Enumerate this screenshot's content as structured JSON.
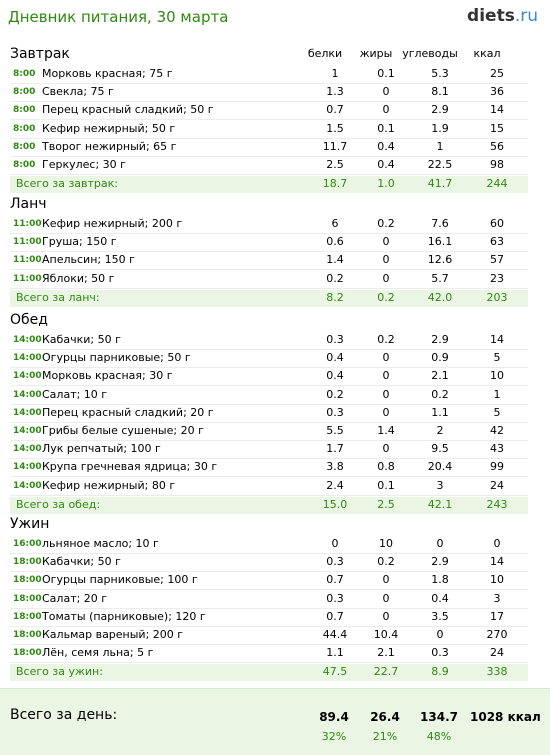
{
  "header": {
    "title": "Дневник питания, 30 марта",
    "logo_main": "diets",
    "logo_tld": ".ru"
  },
  "columns": [
    "белки",
    "жиры",
    "углеводы",
    "ккал"
  ],
  "sections": [
    {
      "title": "Завтрак",
      "rows": [
        {
          "time": "8:00",
          "name": "Морковь красная; 75 г",
          "b": "1",
          "f": "0.1",
          "c": "5.3",
          "k": "25"
        },
        {
          "time": "8:00",
          "name": "Свекла; 75 г",
          "b": "1.3",
          "f": "0",
          "c": "8.1",
          "k": "36"
        },
        {
          "time": "8:00",
          "name": "Перец красный сладкий; 50 г",
          "b": "0.7",
          "f": "0",
          "c": "2.9",
          "k": "14"
        },
        {
          "time": "8:00",
          "name": "Кефир нежирный; 50 г",
          "b": "1.5",
          "f": "0.1",
          "c": "1.9",
          "k": "15"
        },
        {
          "time": "8:00",
          "name": "Творог нежирный; 65 г",
          "b": "11.7",
          "f": "0.4",
          "c": "1",
          "k": "56"
        },
        {
          "time": "8:00",
          "name": "Геркулес; 30 г",
          "b": "2.5",
          "f": "0.4",
          "c": "22.5",
          "k": "98"
        }
      ],
      "total": {
        "label": "Всего за завтрак:",
        "b": "18.7",
        "f": "1.0",
        "c": "41.7",
        "k": "244"
      }
    },
    {
      "title": "Ланч",
      "rows": [
        {
          "time": "11:00",
          "name": "Кефир нежирный; 200 г",
          "b": "6",
          "f": "0.2",
          "c": "7.6",
          "k": "60"
        },
        {
          "time": "11:00",
          "name": "Груша; 150 г",
          "b": "0.6",
          "f": "0",
          "c": "16.1",
          "k": "63"
        },
        {
          "time": "11:00",
          "name": "Апельсин; 150 г",
          "b": "1.4",
          "f": "0",
          "c": "12.6",
          "k": "57"
        },
        {
          "time": "11:00",
          "name": "Яблоки; 50 г",
          "b": "0.2",
          "f": "0",
          "c": "5.7",
          "k": "23"
        }
      ],
      "total": {
        "label": "Всего за ланч:",
        "b": "8.2",
        "f": "0.2",
        "c": "42.0",
        "k": "203"
      }
    },
    {
      "title": "Обед",
      "rows": [
        {
          "time": "14:00",
          "name": "Кабачки; 50 г",
          "b": "0.3",
          "f": "0.2",
          "c": "2.9",
          "k": "14"
        },
        {
          "time": "14:00",
          "name": "Огурцы парниковые; 50 г",
          "b": "0.4",
          "f": "0",
          "c": "0.9",
          "k": "5"
        },
        {
          "time": "14:00",
          "name": "Морковь красная; 30 г",
          "b": "0.4",
          "f": "0",
          "c": "2.1",
          "k": "10"
        },
        {
          "time": "14:00",
          "name": "Салат; 10 г",
          "b": "0.2",
          "f": "0",
          "c": "0.2",
          "k": "1"
        },
        {
          "time": "14:00",
          "name": "Перец красный сладкий; 20 г",
          "b": "0.3",
          "f": "0",
          "c": "1.1",
          "k": "5"
        },
        {
          "time": "14:00",
          "name": "Грибы белые сушеные; 20 г",
          "b": "5.5",
          "f": "1.4",
          "c": "2",
          "k": "42"
        },
        {
          "time": "14:00",
          "name": "Лук репчатый; 100 г",
          "b": "1.7",
          "f": "0",
          "c": "9.5",
          "k": "43"
        },
        {
          "time": "14:00",
          "name": "Крупа гречневая ядрица; 30 г",
          "b": "3.8",
          "f": "0.8",
          "c": "20.4",
          "k": "99"
        },
        {
          "time": "14:00",
          "name": "Кефир нежирный; 80 г",
          "b": "2.4",
          "f": "0.1",
          "c": "3",
          "k": "24"
        }
      ],
      "total": {
        "label": "Всего за обед:",
        "b": "15.0",
        "f": "2.5",
        "c": "42.1",
        "k": "243"
      }
    },
    {
      "title": "Ужин",
      "rows": [
        {
          "time": "16:00",
          "name": "льняное масло; 10 г",
          "b": "0",
          "f": "10",
          "c": "0",
          "k": "0"
        },
        {
          "time": "18:00",
          "name": "Кабачки; 50 г",
          "b": "0.3",
          "f": "0.2",
          "c": "2.9",
          "k": "14"
        },
        {
          "time": "18:00",
          "name": "Огурцы парниковые; 100 г",
          "b": "0.7",
          "f": "0",
          "c": "1.8",
          "k": "10"
        },
        {
          "time": "18:00",
          "name": "Салат; 20 г",
          "b": "0.3",
          "f": "0",
          "c": "0.4",
          "k": "3"
        },
        {
          "time": "18:00",
          "name": "Томаты (парниковые); 120 г",
          "b": "0.7",
          "f": "0",
          "c": "3.5",
          "k": "17"
        },
        {
          "time": "18:00",
          "name": "Кальмар вареный; 200 г",
          "b": "44.4",
          "f": "10.4",
          "c": "0",
          "k": "270"
        },
        {
          "time": "18:00",
          "name": "Лён, семя льна; 5 г",
          "b": "1.1",
          "f": "2.1",
          "c": "0.3",
          "k": "24"
        }
      ],
      "total": {
        "label": "Всего за ужин:",
        "b": "47.5",
        "f": "22.7",
        "c": "8.9",
        "k": "338"
      }
    }
  ],
  "day_total": {
    "label": "Всего за день:",
    "b": "89.4",
    "f": "26.4",
    "c": "134.7",
    "k": "1028 ккал",
    "pb": "32%",
    "pf": "21%",
    "pc": "48%"
  }
}
